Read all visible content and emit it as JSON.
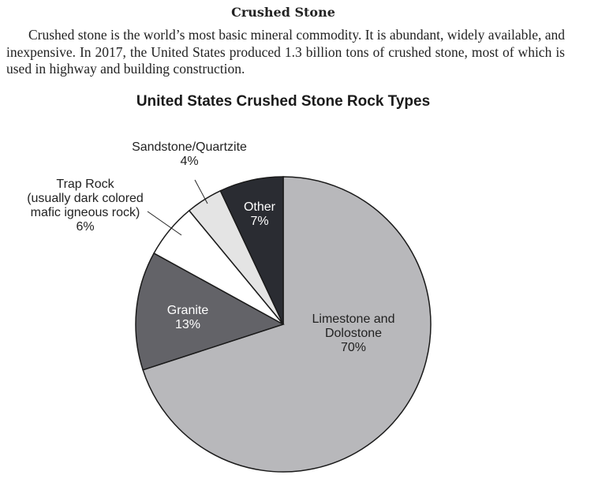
{
  "heading": "Crushed Stone",
  "paragraph": "Crushed stone is the world’s most basic mineral commodity. It is abundant, widely available, and inexpensive. In 2017, the United States produced 1.3 billion tons of crushed stone, most of which is used in highway and building construction.",
  "chart_data": {
    "type": "pie",
    "title": "United States Crushed Stone Rock Types",
    "slices": [
      {
        "name": "Limestone and Dolostone",
        "label_lines": [
          "Limestone and",
          "Dolostone"
        ],
        "value": 70,
        "value_label": "70%",
        "color": "#b8b8bb",
        "text_color": "#222222"
      },
      {
        "name": "Granite",
        "label_lines": [
          "Granite"
        ],
        "value": 13,
        "value_label": "13%",
        "color": "#636368",
        "text_color": "#ffffff"
      },
      {
        "name": "Trap Rock (usually dark colored mafic igneous rock)",
        "label_lines": [
          "Trap Rock",
          "(usually dark colored",
          "mafic igneous rock)"
        ],
        "value": 6,
        "value_label": "6%",
        "color": "#ffffff",
        "text_color": "#222222"
      },
      {
        "name": "Sandstone/Quartzite",
        "label_lines": [
          "Sandstone/Quartzite"
        ],
        "value": 4,
        "value_label": "4%",
        "color": "#e4e4e4",
        "text_color": "#222222"
      },
      {
        "name": "Other",
        "label_lines": [
          "Other"
        ],
        "value": 7,
        "value_label": "7%",
        "color": "#2a2c32",
        "text_color": "#ffffff"
      }
    ]
  }
}
